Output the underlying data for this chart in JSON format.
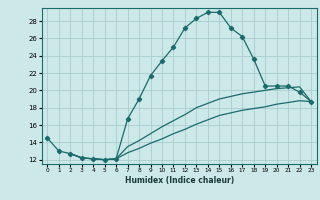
{
  "title": "",
  "xlabel": "Humidex (Indice chaleur)",
  "ylabel": "",
  "xlim": [
    -0.5,
    23.5
  ],
  "ylim": [
    11.5,
    29.5
  ],
  "xticks": [
    0,
    1,
    2,
    3,
    4,
    5,
    6,
    7,
    8,
    9,
    10,
    11,
    12,
    13,
    14,
    15,
    16,
    17,
    18,
    19,
    20,
    21,
    22,
    23
  ],
  "yticks": [
    12,
    14,
    16,
    18,
    20,
    22,
    24,
    26,
    28
  ],
  "background_color": "#cce8e8",
  "grid_color": "#aacccc",
  "line_color": "#1a6b6b",
  "line1_x": [
    0,
    1,
    2,
    3,
    4,
    5,
    6,
    7,
    8,
    9,
    10,
    11,
    12,
    13,
    14,
    15,
    16,
    17,
    18,
    19,
    20,
    21,
    22,
    23
  ],
  "line1_y": [
    14.5,
    13.0,
    12.7,
    12.2,
    12.1,
    12.0,
    12.1,
    16.7,
    19.0,
    21.7,
    23.4,
    25.0,
    27.2,
    28.3,
    29.0,
    29.0,
    27.2,
    26.2,
    23.6,
    20.5,
    20.5,
    20.5,
    19.8,
    18.7
  ],
  "line2_x": [
    2,
    3,
    4,
    5,
    6,
    7,
    8,
    9,
    10,
    11,
    12,
    13,
    14,
    15,
    16,
    17,
    18,
    19,
    20,
    21,
    22,
    23
  ],
  "line2_y": [
    12.7,
    12.2,
    12.1,
    12.0,
    12.1,
    13.5,
    14.2,
    15.0,
    15.8,
    16.5,
    17.2,
    18.0,
    18.5,
    19.0,
    19.3,
    19.6,
    19.8,
    20.0,
    20.2,
    20.3,
    20.4,
    18.7
  ],
  "line3_x": [
    2,
    3,
    4,
    5,
    6,
    7,
    8,
    9,
    10,
    11,
    12,
    13,
    14,
    15,
    16,
    17,
    18,
    19,
    20,
    21,
    22,
    23
  ],
  "line3_y": [
    12.7,
    12.2,
    12.1,
    12.0,
    12.1,
    12.8,
    13.3,
    13.9,
    14.4,
    15.0,
    15.5,
    16.1,
    16.6,
    17.1,
    17.4,
    17.7,
    17.9,
    18.1,
    18.4,
    18.6,
    18.8,
    18.7
  ]
}
